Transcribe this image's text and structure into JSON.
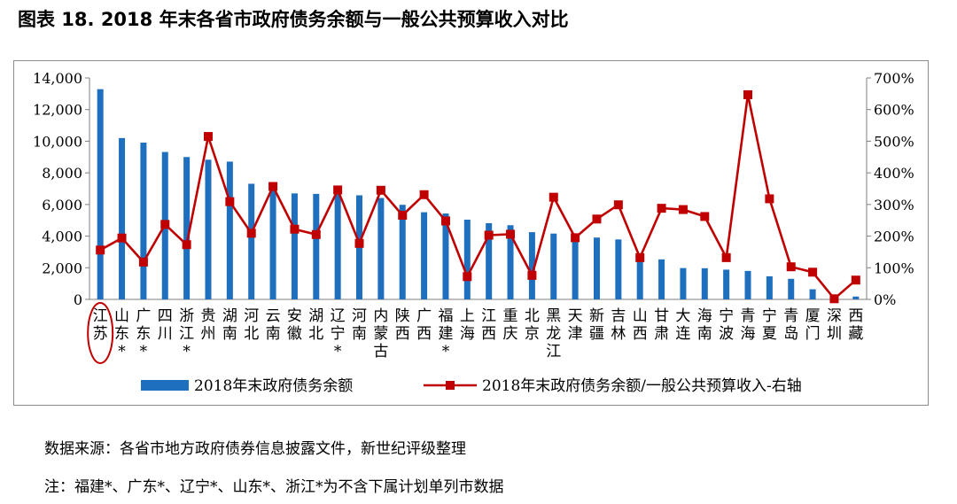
{
  "figure": {
    "title": "图表 18. 2018 年末各省市政府债务余额与一般公共预算收入对比"
  },
  "notes": {
    "source": "数据来源：各省市地方政府债券信息披露文件，新世纪评级整理",
    "footnote": "注：福建*、广东*、辽宁*、山东*、浙江*为不含下属计划单列市数据"
  },
  "colors": {
    "bar": "#1f6fbf",
    "line": "#c00000",
    "highlight_circle": "#c00000"
  },
  "chart_data": {
    "type": "bar",
    "title": "",
    "categories": [
      "江苏",
      "山东*",
      "广东*",
      "四川",
      "浙江*",
      "贵州",
      "湖南",
      "河北",
      "云南",
      "安徽",
      "湖北",
      "辽宁*",
      "河南",
      "内蒙古",
      "陕西",
      "广西",
      "福建*",
      "上海",
      "江西",
      "重庆",
      "北京",
      "黑龙江",
      "天津",
      "新疆",
      "吉林",
      "山西",
      "甘肃",
      "大连",
      "海南",
      "宁波",
      "青海",
      "宁夏",
      "青岛",
      "厦门",
      "深圳",
      "西藏"
    ],
    "category_labels": [
      "江苏",
      "山东\n*",
      "广东\n*",
      "四川",
      "浙江\n*",
      "贵州",
      "湖南",
      "河北",
      "云南",
      "安徽",
      "湖北",
      "辽宁\n*",
      "河南",
      "内蒙古",
      "陕西",
      "广西",
      "福建\n*",
      "上海",
      "江西",
      "重庆",
      "北京",
      "黑龙江",
      "天津",
      "新疆",
      "吉林",
      "山西",
      "甘肃",
      "大连",
      "海南",
      "宁波",
      "青海",
      "宁夏",
      "青岛",
      "厦门",
      "深圳",
      "西藏"
    ],
    "highlighted_category": "江苏",
    "series": [
      {
        "name": "2018年末政府债务余额",
        "type": "bar",
        "axis": "left",
        "values": [
          13290,
          10200,
          9910,
          9320,
          9000,
          8830,
          8710,
          7310,
          7130,
          6700,
          6670,
          6650,
          6580,
          6410,
          5980,
          5510,
          5430,
          5040,
          4820,
          4690,
          4250,
          4160,
          4110,
          3910,
          3790,
          2770,
          2530,
          1980,
          1970,
          1880,
          1800,
          1460,
          1300,
          640,
          190,
          180
        ]
      },
      {
        "name": "2018年末政府债务余额/一般公共预算收入-右轴",
        "type": "line",
        "axis": "right",
        "values": [
          156,
          194,
          118,
          237,
          173,
          515,
          309,
          209,
          357,
          222,
          205,
          346,
          177,
          345,
          266,
          331,
          248,
          72,
          203,
          206,
          76,
          323,
          195,
          254,
          299,
          132,
          288,
          284,
          262,
          132,
          647,
          318,
          103,
          86,
          2,
          61
        ]
      }
    ],
    "y_left": {
      "min": 0,
      "max": 14000,
      "step": 2000,
      "tick_labels": [
        "0",
        "2,000",
        "4,000",
        "6,000",
        "8,000",
        "10,000",
        "12,000",
        "14,000"
      ]
    },
    "y_right": {
      "min": 0,
      "max": 700,
      "step": 100,
      "tick_labels": [
        "0%",
        "100%",
        "200%",
        "300%",
        "400%",
        "500%",
        "600%",
        "700%"
      ]
    },
    "legend_position": "bottom",
    "grid": false
  }
}
